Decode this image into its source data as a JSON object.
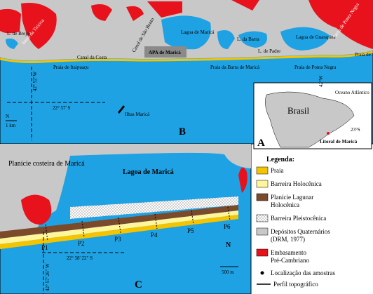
{
  "map_b": {
    "panel": "B",
    "labels": [
      "L. de Brejo",
      "Serra da Tiririca",
      "Canal de São Bento",
      "Lagoa de Maricá",
      "APA de Maricá",
      "L. da Barra",
      "L. de Padre",
      "Lagoa de Guarapina",
      "Serra de Ponta Negra",
      "Praia de Jaconé",
      "Canal da Costa",
      "Praia de Itaipuaçu",
      "Praia da Barra de Maricá",
      "Praia de Ponta Negra",
      "Ilhas Maricá"
    ],
    "longitude": "42° 52' W",
    "latitude": "22° 57' S",
    "scale": "1 km",
    "north": "N"
  },
  "inset_a": {
    "panel": "A",
    "ocean": "Oceano Atlântico",
    "country": "Brasil",
    "latitude": "23°S",
    "longitude": "42°W",
    "site": "Litoral de Maricá"
  },
  "map_c": {
    "panel": "C",
    "plain": "Planície costeira de Maricá",
    "lagoon": "Lagoa de Maricá",
    "profiles": [
      "P1",
      "P2",
      "P3",
      "P4",
      "P5",
      "P6"
    ],
    "latitude": "22° 58' 22\" S",
    "longitude": "42° 57' 26\" W",
    "scale": "500 m",
    "north": "N"
  },
  "legend": {
    "title": "Legenda:",
    "items": [
      "Praia",
      "Barreira Holocênica",
      "Planície Lagunar Holocênica",
      "Barreira Pleistocênica",
      "Depósitos Quaternários (DRM, 1977)",
      "Embasamento Pré-Cambriano",
      "Localização das amostras",
      "Perfil topográfico"
    ]
  }
}
